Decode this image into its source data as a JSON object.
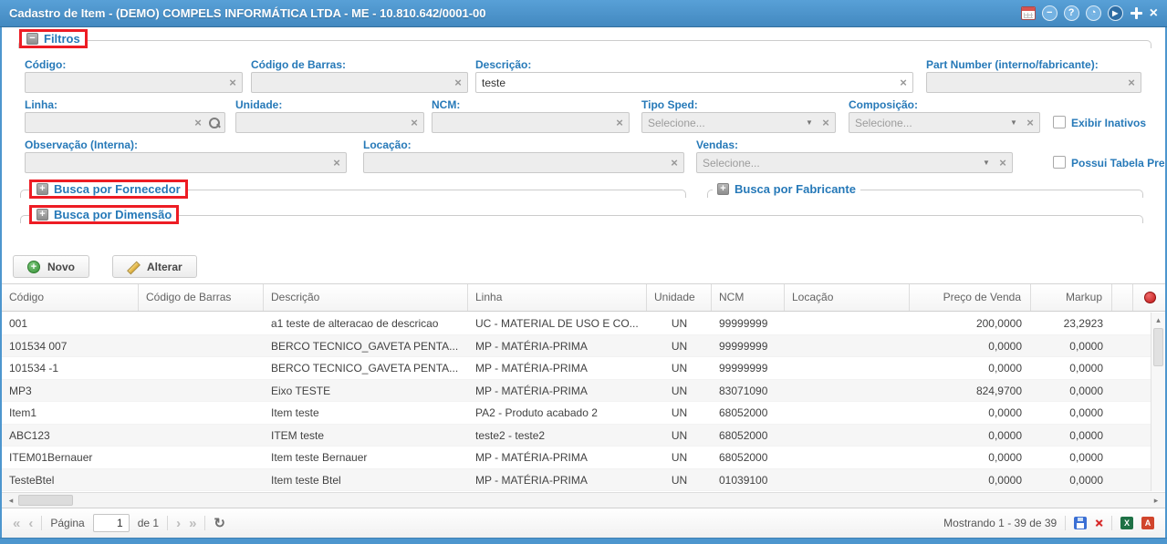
{
  "titlebar": {
    "title": "Cadastro de Item - (DEMO) COMPELS INFORMÁTICA LTDA - ME - 10.810.642/0001-00",
    "icons": [
      "calendar-icon",
      "minimize-icon",
      "help-icon",
      "clock-icon",
      "run-icon",
      "restore-icon",
      "close-icon"
    ]
  },
  "filters": {
    "legend": "Filtros",
    "codigo": {
      "label": "Código:",
      "value": ""
    },
    "codigo_barras": {
      "label": "Código de Barras:",
      "value": ""
    },
    "descricao": {
      "label": "Descrição:",
      "value": "teste"
    },
    "part_number": {
      "label": "Part Number (interno/fabricante):",
      "value": ""
    },
    "linha": {
      "label": "Linha:",
      "value": ""
    },
    "unidade": {
      "label": "Unidade:",
      "value": ""
    },
    "ncm": {
      "label": "NCM:",
      "value": ""
    },
    "tipo_sped": {
      "label": "Tipo Sped:",
      "value": "Selecione..."
    },
    "composicao": {
      "label": "Composição:",
      "value": "Selecione..."
    },
    "exibir_inativos": {
      "label": "Exibir Inativos",
      "checked": false
    },
    "observacao": {
      "label": "Observação (Interna):",
      "value": ""
    },
    "locacao": {
      "label": "Locação:",
      "value": ""
    },
    "vendas": {
      "label": "Vendas:",
      "value": "Selecione..."
    },
    "possui_tabela_preco": {
      "label": "Possui Tabela Preço",
      "checked": false
    },
    "busca_fornecedor": "Busca por Fornecedor",
    "busca_fabricante": "Busca por Fabricante",
    "busca_dimensao": "Busca por Dimensão"
  },
  "toolbar": {
    "novo": "Novo",
    "alterar": "Alterar"
  },
  "table": {
    "columns": [
      "Código",
      "Código de Barras",
      "Descrição",
      "Linha",
      "Unidade",
      "NCM",
      "Locação",
      "Preço de Venda",
      "Markup"
    ],
    "rows": [
      [
        "001",
        "",
        "a1 teste de alteracao de descricao",
        "UC - MATERIAL DE USO E CO...",
        "UN",
        "99999999",
        "",
        "200,0000",
        "23,2923"
      ],
      [
        "101534 007",
        "",
        "BERCO TECNICO_GAVETA PENTA...",
        "MP - MATÉRIA-PRIMA",
        "UN",
        "99999999",
        "",
        "0,0000",
        "0,0000"
      ],
      [
        "101534 -1",
        "",
        "BERCO TECNICO_GAVETA PENTA...",
        "MP - MATÉRIA-PRIMA",
        "UN",
        "99999999",
        "",
        "0,0000",
        "0,0000"
      ],
      [
        "MP3",
        "",
        "Eixo TESTE",
        "MP - MATÉRIA-PRIMA",
        "UN",
        "83071090",
        "",
        "824,9700",
        "0,0000"
      ],
      [
        "Item1",
        "",
        "Item teste",
        "PA2 - Produto acabado 2",
        "UN",
        "68052000",
        "",
        "0,0000",
        "0,0000"
      ],
      [
        "ABC123",
        "",
        "ITEM teste",
        "teste2 - teste2",
        "UN",
        "68052000",
        "",
        "0,0000",
        "0,0000"
      ],
      [
        "ITEM01Bernauer",
        "",
        "Item teste Bernauer",
        "MP - MATÉRIA-PRIMA",
        "UN",
        "68052000",
        "",
        "0,0000",
        "0,0000"
      ],
      [
        "TesteBtel",
        "",
        "Item teste Btel",
        "MP - MATÉRIA-PRIMA",
        "UN",
        "01039100",
        "",
        "0,0000",
        "0,0000"
      ]
    ]
  },
  "pager": {
    "pagina_label": "Página",
    "page_value": "1",
    "of_label": "de 1",
    "status": "Mostrando 1 - 39 de 39",
    "export_icons": [
      "save-icon",
      "delete-icon",
      "excel-icon",
      "pdf-icon"
    ]
  }
}
